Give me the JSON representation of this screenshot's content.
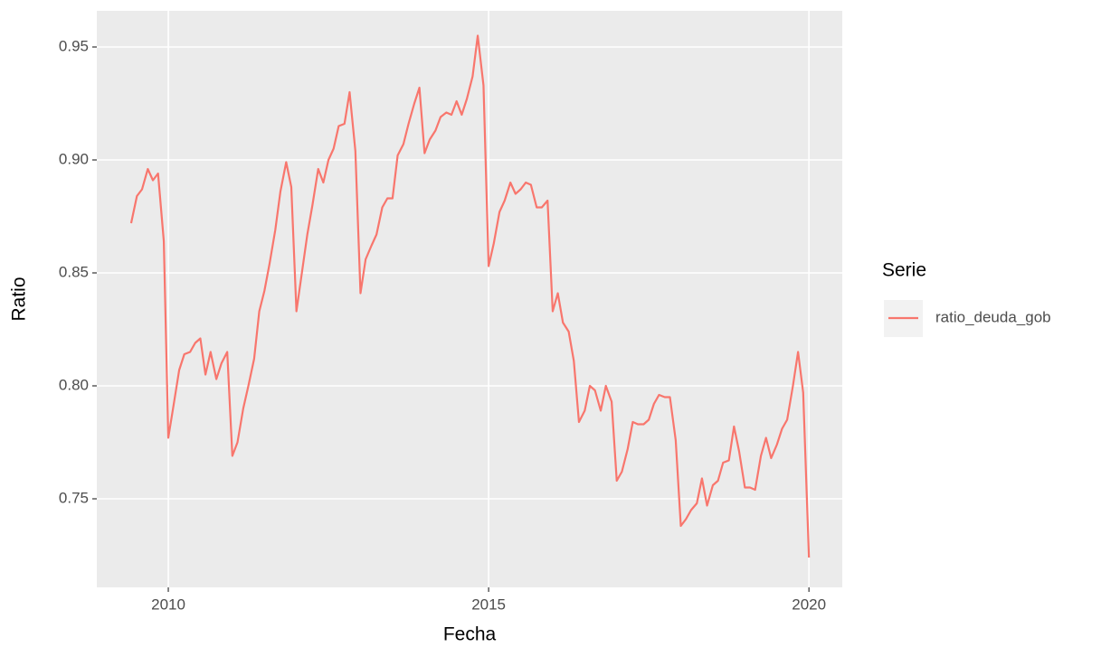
{
  "chart_data": {
    "type": "line",
    "x_label": "Fecha",
    "y_label": "Ratio",
    "legend_title": "Serie",
    "legend_position": "right",
    "grid": true,
    "x": [
      2009.42,
      2009.51,
      2009.59,
      2009.68,
      2009.76,
      2009.84,
      2009.93,
      2010.0,
      2010.08,
      2010.17,
      2010.25,
      2010.34,
      2010.42,
      2010.5,
      2010.58,
      2010.66,
      2010.75,
      2010.83,
      2010.92,
      2011.0,
      2011.08,
      2011.17,
      2011.25,
      2011.34,
      2011.42,
      2011.5,
      2011.58,
      2011.67,
      2011.75,
      2011.84,
      2011.92,
      2012.0,
      2012.08,
      2012.17,
      2012.25,
      2012.34,
      2012.42,
      2012.5,
      2012.58,
      2012.66,
      2012.75,
      2012.83,
      2012.92,
      2013.0,
      2013.08,
      2013.17,
      2013.25,
      2013.34,
      2013.42,
      2013.5,
      2013.58,
      2013.67,
      2013.75,
      2013.84,
      2013.92,
      2014.0,
      2014.08,
      2014.17,
      2014.25,
      2014.34,
      2014.42,
      2014.5,
      2014.58,
      2014.66,
      2014.75,
      2014.83,
      2014.92,
      2015.0,
      2015.08,
      2015.17,
      2015.25,
      2015.34,
      2015.42,
      2015.5,
      2015.58,
      2015.66,
      2015.75,
      2015.83,
      2015.92,
      2016.0,
      2016.08,
      2016.16,
      2016.25,
      2016.33,
      2016.41,
      2016.5,
      2016.58,
      2016.66,
      2016.75,
      2016.83,
      2016.92,
      2017.0,
      2017.08,
      2017.17,
      2017.25,
      2017.33,
      2017.42,
      2017.5,
      2017.58,
      2017.66,
      2017.75,
      2017.83,
      2017.92,
      2018.0,
      2018.08,
      2018.16,
      2018.25,
      2018.33,
      2018.41,
      2018.5,
      2018.58,
      2018.66,
      2018.75,
      2018.83,
      2018.91,
      2019.0,
      2019.08,
      2019.16,
      2019.25,
      2019.33,
      2019.41,
      2019.5,
      2019.58,
      2019.66,
      2019.75,
      2019.83,
      2019.91,
      2020.0
    ],
    "series": [
      {
        "name": "ratio_deuda_gob",
        "color": "#F8766D",
        "values": [
          0.872,
          0.884,
          0.887,
          0.896,
          0.891,
          0.894,
          0.864,
          0.777,
          0.791,
          0.807,
          0.814,
          0.815,
          0.819,
          0.821,
          0.805,
          0.815,
          0.803,
          0.81,
          0.815,
          0.769,
          0.775,
          0.79,
          0.8,
          0.812,
          0.833,
          0.842,
          0.854,
          0.869,
          0.886,
          0.899,
          0.888,
          0.833,
          0.849,
          0.867,
          0.88,
          0.896,
          0.89,
          0.9,
          0.905,
          0.915,
          0.916,
          0.93,
          0.904,
          0.841,
          0.856,
          0.862,
          0.867,
          0.879,
          0.883,
          0.883,
          0.902,
          0.907,
          0.916,
          0.925,
          0.932,
          0.903,
          0.909,
          0.913,
          0.919,
          0.921,
          0.92,
          0.926,
          0.92,
          0.927,
          0.937,
          0.955,
          0.933,
          0.853,
          0.863,
          0.877,
          0.882,
          0.89,
          0.885,
          0.887,
          0.89,
          0.889,
          0.879,
          0.879,
          0.882,
          0.833,
          0.841,
          0.828,
          0.824,
          0.811,
          0.784,
          0.789,
          0.8,
          0.798,
          0.789,
          0.8,
          0.793,
          0.758,
          0.762,
          0.772,
          0.784,
          0.783,
          0.783,
          0.785,
          0.792,
          0.796,
          0.795,
          0.795,
          0.776,
          0.738,
          0.741,
          0.745,
          0.748,
          0.759,
          0.747,
          0.756,
          0.758,
          0.766,
          0.767,
          0.782,
          0.771,
          0.755,
          0.755,
          0.754,
          0.769,
          0.777,
          0.768,
          0.774,
          0.781,
          0.785,
          0.8,
          0.815,
          0.797,
          0.724
        ]
      }
    ],
    "xlim": [
      2008.884,
      2020.52
    ],
    "xticks": [
      2010,
      2015,
      2020
    ],
    "ylim": [
      0.7108,
      0.966
    ],
    "yticks": [
      0.75,
      {
        "value": 0.8,
        "label": "0.80"
      },
      0.85,
      {
        "value": 0.9,
        "label": "0.90"
      },
      0.95
    ]
  }
}
